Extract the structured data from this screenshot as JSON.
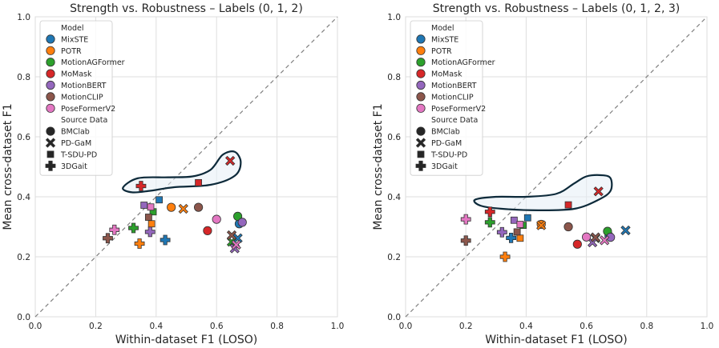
{
  "chart_data": [
    {
      "type": "scatter",
      "title": "Strength vs. Robustness – Labels (0, 1, 2)",
      "xlabel": "Within-dataset F1 (LOSO)",
      "ylabel": "Mean cross-dataset F1",
      "xlim": [
        0,
        1
      ],
      "ylim": [
        0,
        1
      ],
      "xticks": [
        "0.0",
        "0.2",
        "0.4",
        "0.6",
        "0.8",
        "1.0"
      ],
      "yticks": [
        "0.0",
        "0.2",
        "0.4",
        "0.6",
        "0.8",
        "1.0"
      ],
      "grid": true,
      "legend_position": "top-left",
      "diagonal": true,
      "models": [
        {
          "name": "MixSTE",
          "color": "#1f77b4"
        },
        {
          "name": "POTR",
          "color": "#ff7f0e"
        },
        {
          "name": "MotionAGFormer",
          "color": "#2ca02c"
        },
        {
          "name": "MoMask",
          "color": "#d62728"
        },
        {
          "name": "MotionBERT",
          "color": "#9467bd"
        },
        {
          "name": "MotionCLIP",
          "color": "#8c564b"
        },
        {
          "name": "PoseFormerV2",
          "color": "#e377c2"
        }
      ],
      "legend_model_header": "Model",
      "legend_source_header": "Source Data",
      "sources": [
        {
          "name": "BMClab",
          "marker": "circle"
        },
        {
          "name": "PD-GaM",
          "marker": "x"
        },
        {
          "name": "T-SDU-PD",
          "marker": "square"
        },
        {
          "name": "3DGait",
          "marker": "plus"
        }
      ],
      "points": [
        {
          "model": "MixSTE",
          "source": "BMClab",
          "x": 0.675,
          "y": 0.31
        },
        {
          "model": "MixSTE",
          "source": "PD-GaM",
          "x": 0.67,
          "y": 0.262
        },
        {
          "model": "MixSTE",
          "source": "T-SDU-PD",
          "x": 0.41,
          "y": 0.39
        },
        {
          "model": "MixSTE",
          "source": "3DGait",
          "x": 0.43,
          "y": 0.256
        },
        {
          "model": "POTR",
          "source": "BMClab",
          "x": 0.45,
          "y": 0.365
        },
        {
          "model": "POTR",
          "source": "PD-GaM",
          "x": 0.49,
          "y": 0.36
        },
        {
          "model": "POTR",
          "source": "T-SDU-PD",
          "x": 0.385,
          "y": 0.31
        },
        {
          "model": "POTR",
          "source": "3DGait",
          "x": 0.345,
          "y": 0.244
        },
        {
          "model": "MotionAGFormer",
          "source": "BMClab",
          "x": 0.67,
          "y": 0.335
        },
        {
          "model": "MotionAGFormer",
          "source": "PD-GaM",
          "x": 0.65,
          "y": 0.25
        },
        {
          "model": "MotionAGFormer",
          "source": "T-SDU-PD",
          "x": 0.39,
          "y": 0.35
        },
        {
          "model": "MotionAGFormer",
          "source": "3DGait",
          "x": 0.325,
          "y": 0.296
        },
        {
          "model": "MoMask",
          "source": "BMClab",
          "x": 0.57,
          "y": 0.287
        },
        {
          "model": "MoMask",
          "source": "PD-GaM",
          "x": 0.645,
          "y": 0.52
        },
        {
          "model": "MoMask",
          "source": "T-SDU-PD",
          "x": 0.54,
          "y": 0.447
        },
        {
          "model": "MoMask",
          "source": "3DGait",
          "x": 0.35,
          "y": 0.436
        },
        {
          "model": "MotionBERT",
          "source": "BMClab",
          "x": 0.685,
          "y": 0.315
        },
        {
          "model": "MotionBERT",
          "source": "PD-GaM",
          "x": 0.66,
          "y": 0.228
        },
        {
          "model": "MotionBERT",
          "source": "T-SDU-PD",
          "x": 0.36,
          "y": 0.372
        },
        {
          "model": "MotionBERT",
          "source": "3DGait",
          "x": 0.38,
          "y": 0.283
        },
        {
          "model": "MotionCLIP",
          "source": "BMClab",
          "x": 0.54,
          "y": 0.365
        },
        {
          "model": "MotionCLIP",
          "source": "PD-GaM",
          "x": 0.65,
          "y": 0.272
        },
        {
          "model": "MotionCLIP",
          "source": "T-SDU-PD",
          "x": 0.375,
          "y": 0.332
        },
        {
          "model": "MotionCLIP",
          "source": "3DGait",
          "x": 0.24,
          "y": 0.262
        },
        {
          "model": "PoseFormerV2",
          "source": "BMClab",
          "x": 0.6,
          "y": 0.325
        },
        {
          "model": "PoseFormerV2",
          "source": "PD-GaM",
          "x": 0.665,
          "y": 0.24
        },
        {
          "model": "PoseFormerV2",
          "source": "T-SDU-PD",
          "x": 0.382,
          "y": 0.366
        },
        {
          "model": "PoseFormerV2",
          "source": "3DGait",
          "x": 0.262,
          "y": 0.29
        }
      ],
      "region_outline": [
        [
          0.29,
          0.43
        ],
        [
          0.34,
          0.462
        ],
        [
          0.44,
          0.465
        ],
        [
          0.52,
          0.468
        ],
        [
          0.58,
          0.49
        ],
        [
          0.62,
          0.54
        ],
        [
          0.66,
          0.55
        ],
        [
          0.68,
          0.515
        ],
        [
          0.66,
          0.47
        ],
        [
          0.58,
          0.44
        ],
        [
          0.46,
          0.432
        ],
        [
          0.38,
          0.42
        ],
        [
          0.32,
          0.415
        ]
      ]
    },
    {
      "type": "scatter",
      "title": "Strength vs. Robustness – Labels (0, 1, 2, 3)",
      "xlabel": "Within-dataset F1 (LOSO)",
      "ylabel": "Mean cross-dataset F1",
      "xlim": [
        0,
        1
      ],
      "ylim": [
        0,
        1
      ],
      "xticks": [
        "0.0",
        "0.2",
        "0.4",
        "0.6",
        "0.8",
        "1.0"
      ],
      "yticks": [
        "0.0",
        "0.2",
        "0.4",
        "0.6",
        "0.8",
        "1.0"
      ],
      "grid": true,
      "legend_position": "top-left",
      "diagonal": true,
      "models": [
        {
          "name": "MixSTE",
          "color": "#1f77b4"
        },
        {
          "name": "POTR",
          "color": "#ff7f0e"
        },
        {
          "name": "MotionAGFormer",
          "color": "#2ca02c"
        },
        {
          "name": "MoMask",
          "color": "#d62728"
        },
        {
          "name": "MotionBERT",
          "color": "#9467bd"
        },
        {
          "name": "MotionCLIP",
          "color": "#8c564b"
        },
        {
          "name": "PoseFormerV2",
          "color": "#e377c2"
        }
      ],
      "legend_model_header": "Model",
      "legend_source_header": "Source Data",
      "sources": [
        {
          "name": "BMClab",
          "marker": "circle"
        },
        {
          "name": "PD-GaM",
          "marker": "x"
        },
        {
          "name": "T-SDU-PD",
          "marker": "square"
        },
        {
          "name": "3DGait",
          "marker": "plus"
        }
      ],
      "points": [
        {
          "model": "MixSTE",
          "source": "BMClab",
          "x": 0.675,
          "y": 0.27
        },
        {
          "model": "MixSTE",
          "source": "PD-GaM",
          "x": 0.73,
          "y": 0.288
        },
        {
          "model": "MixSTE",
          "source": "T-SDU-PD",
          "x": 0.405,
          "y": 0.33
        },
        {
          "model": "MixSTE",
          "source": "3DGait",
          "x": 0.35,
          "y": 0.263
        },
        {
          "model": "POTR",
          "source": "BMClab",
          "x": 0.45,
          "y": 0.308
        },
        {
          "model": "POTR",
          "source": "PD-GaM",
          "x": 0.45,
          "y": 0.305
        },
        {
          "model": "POTR",
          "source": "T-SDU-PD",
          "x": 0.38,
          "y": 0.262
        },
        {
          "model": "POTR",
          "source": "3DGait",
          "x": 0.33,
          "y": 0.2
        },
        {
          "model": "MotionAGFormer",
          "source": "BMClab",
          "x": 0.67,
          "y": 0.285
        },
        {
          "model": "MotionAGFormer",
          "source": "PD-GaM",
          "x": 0.63,
          "y": 0.262
        },
        {
          "model": "MotionAGFormer",
          "source": "T-SDU-PD",
          "x": 0.39,
          "y": 0.305
        },
        {
          "model": "MotionAGFormer",
          "source": "3DGait",
          "x": 0.28,
          "y": 0.315
        },
        {
          "model": "MoMask",
          "source": "BMClab",
          "x": 0.57,
          "y": 0.242
        },
        {
          "model": "MoMask",
          "source": "PD-GaM",
          "x": 0.64,
          "y": 0.418
        },
        {
          "model": "MoMask",
          "source": "T-SDU-PD",
          "x": 0.54,
          "y": 0.373
        },
        {
          "model": "MoMask",
          "source": "3DGait",
          "x": 0.28,
          "y": 0.35
        },
        {
          "model": "MotionBERT",
          "source": "BMClab",
          "x": 0.68,
          "y": 0.265
        },
        {
          "model": "MotionBERT",
          "source": "PD-GaM",
          "x": 0.62,
          "y": 0.248
        },
        {
          "model": "MotionBERT",
          "source": "T-SDU-PD",
          "x": 0.36,
          "y": 0.322
        },
        {
          "model": "MotionBERT",
          "source": "3DGait",
          "x": 0.32,
          "y": 0.282
        },
        {
          "model": "MotionCLIP",
          "source": "BMClab",
          "x": 0.54,
          "y": 0.3
        },
        {
          "model": "MotionCLIP",
          "source": "PD-GaM",
          "x": 0.63,
          "y": 0.265
        },
        {
          "model": "MotionCLIP",
          "source": "T-SDU-PD",
          "x": 0.37,
          "y": 0.283
        },
        {
          "model": "MotionCLIP",
          "source": "3DGait",
          "x": 0.2,
          "y": 0.254
        },
        {
          "model": "PoseFormerV2",
          "source": "BMClab",
          "x": 0.6,
          "y": 0.266
        },
        {
          "model": "PoseFormerV2",
          "source": "PD-GaM",
          "x": 0.66,
          "y": 0.255
        },
        {
          "model": "PoseFormerV2",
          "source": "T-SDU-PD",
          "x": 0.38,
          "y": 0.308
        },
        {
          "model": "PoseFormerV2",
          "source": "3DGait",
          "x": 0.2,
          "y": 0.325
        }
      ],
      "region_outline": [
        [
          0.23,
          0.39
        ],
        [
          0.3,
          0.4
        ],
        [
          0.4,
          0.4
        ],
        [
          0.5,
          0.41
        ],
        [
          0.56,
          0.445
        ],
        [
          0.6,
          0.468
        ],
        [
          0.65,
          0.472
        ],
        [
          0.68,
          0.462
        ],
        [
          0.68,
          0.42
        ],
        [
          0.64,
          0.39
        ],
        [
          0.56,
          0.36
        ],
        [
          0.44,
          0.355
        ],
        [
          0.32,
          0.36
        ],
        [
          0.25,
          0.37
        ]
      ]
    }
  ]
}
